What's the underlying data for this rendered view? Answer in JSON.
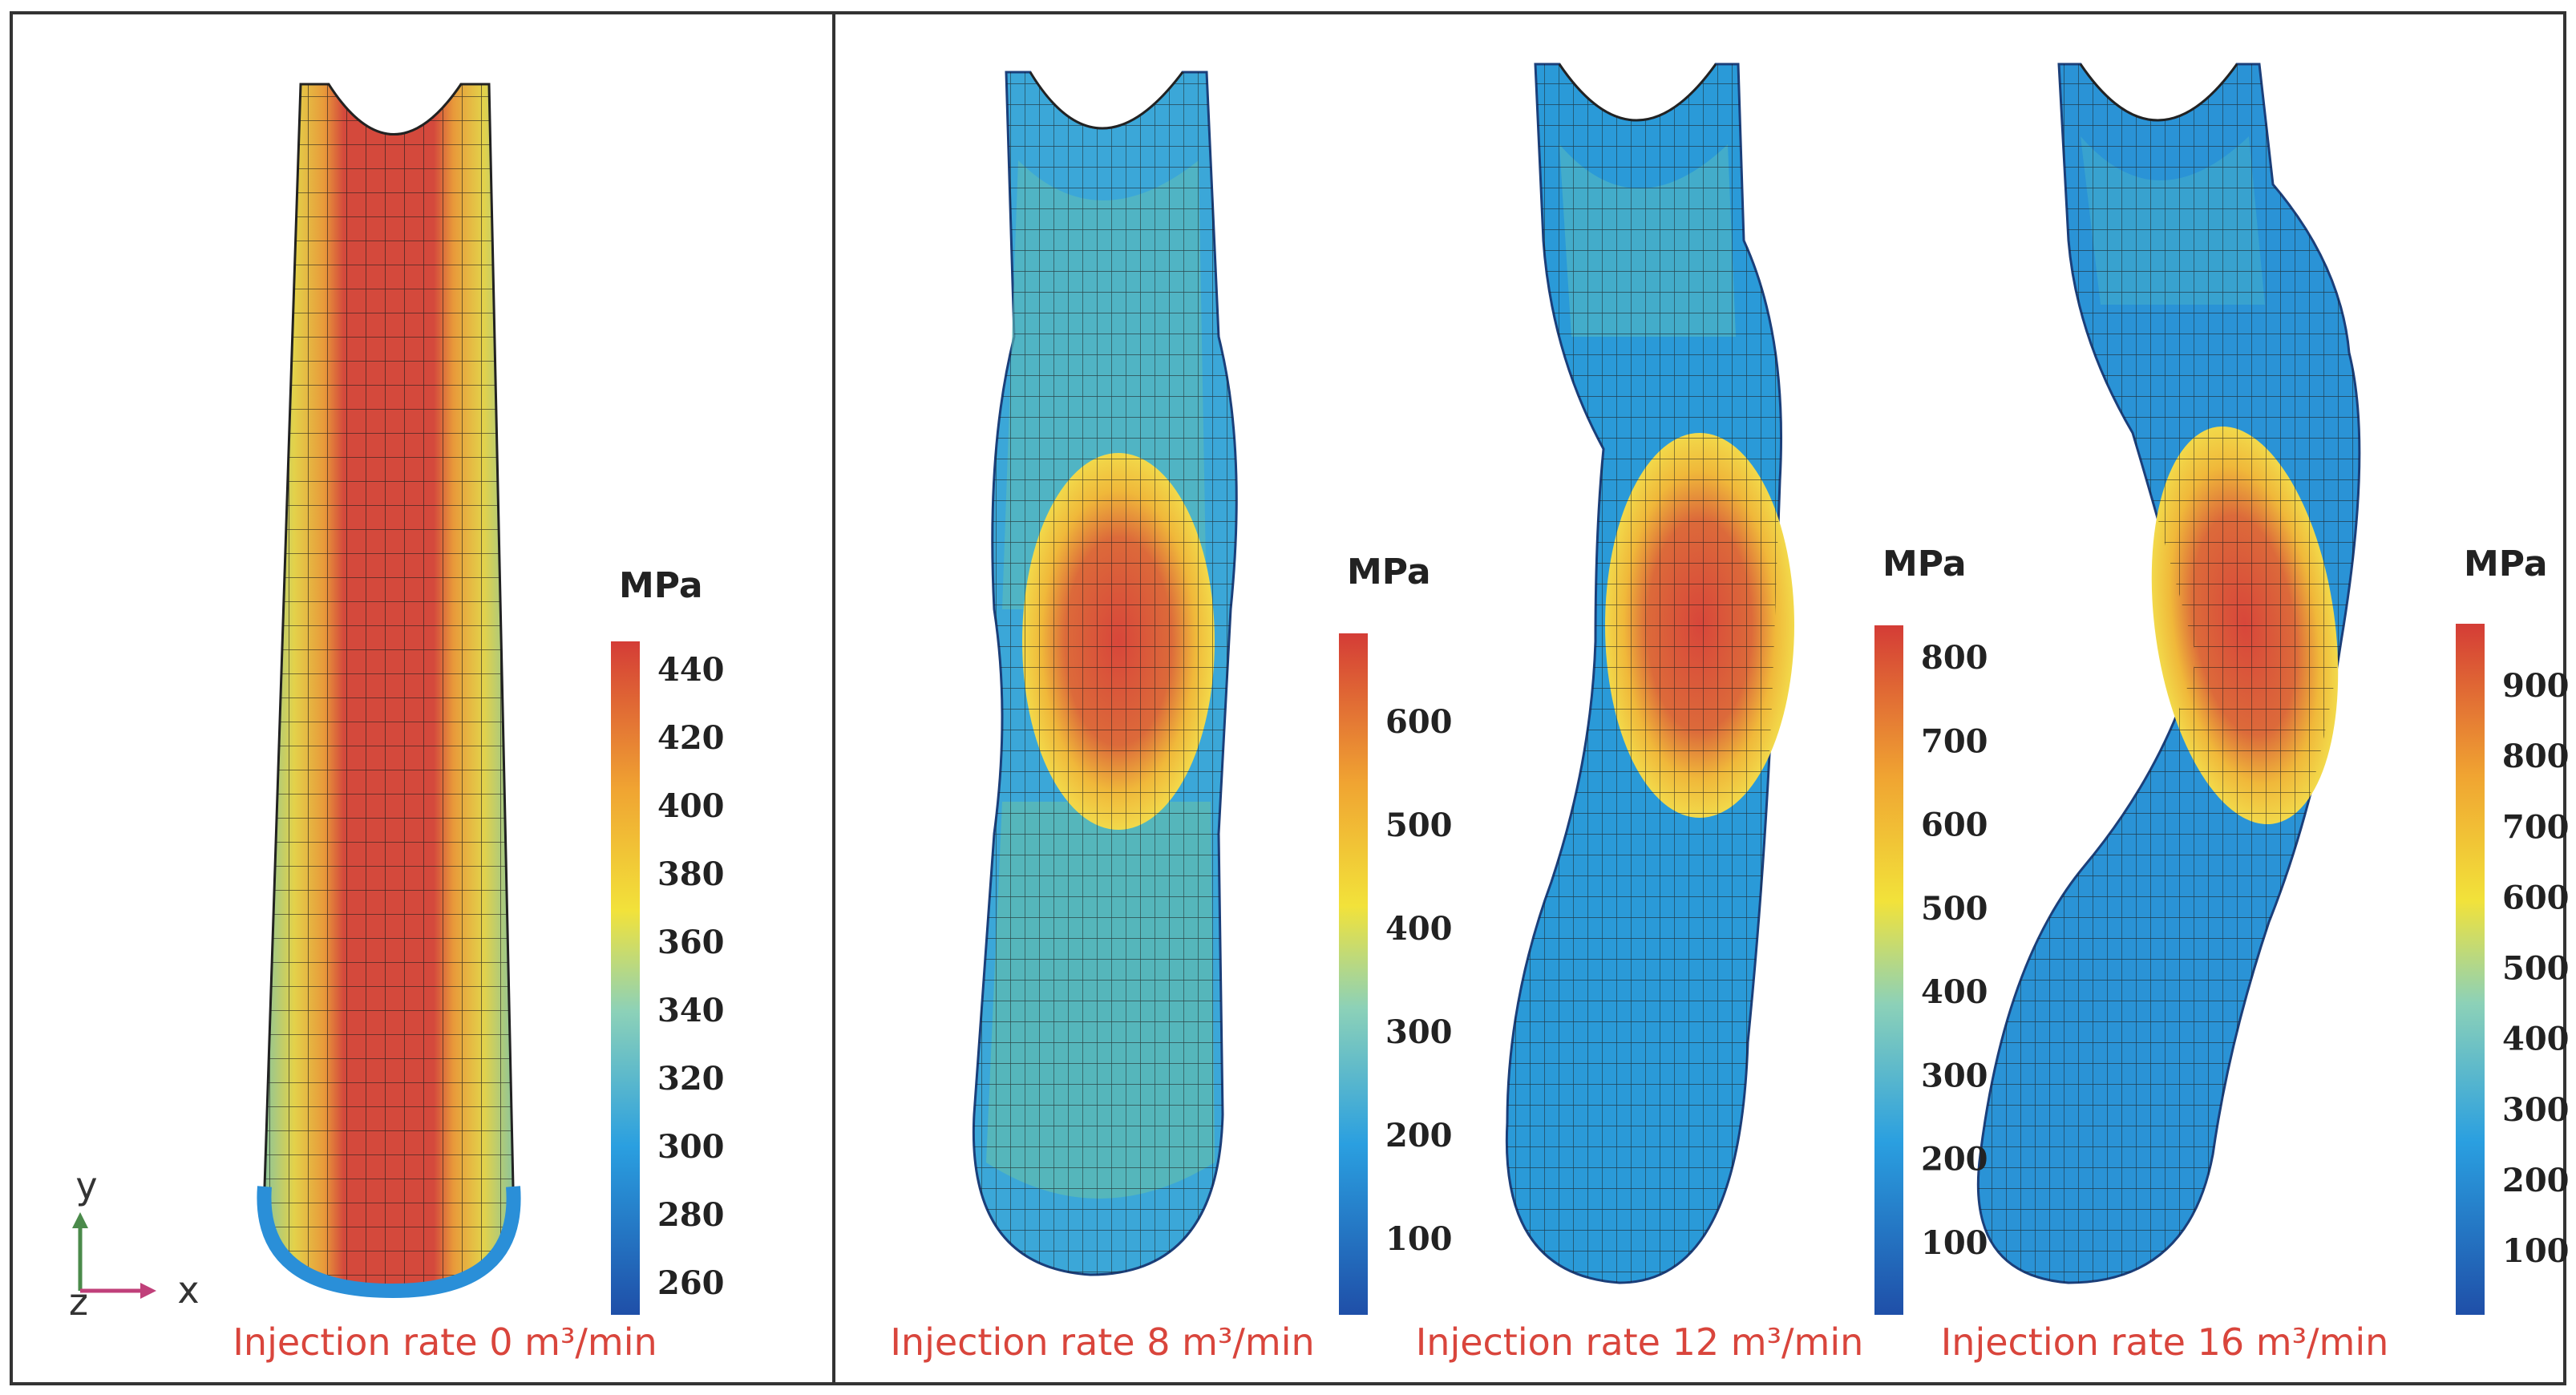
{
  "panels": [
    {
      "caption_prefix": "Injection rate ",
      "rate": "0",
      "caption_suffix": " m³/min",
      "colorbar": {
        "unit": "MPa",
        "ticks": [
          "440",
          "420",
          "400",
          "380",
          "360",
          "340",
          "320",
          "300",
          "280",
          "260"
        ]
      }
    },
    {
      "caption_prefix": "Injection rate ",
      "rate": "8",
      "caption_suffix": " m³/min",
      "colorbar": {
        "unit": "MPa",
        "ticks": [
          "600",
          "500",
          "400",
          "300",
          "200",
          "100"
        ]
      }
    },
    {
      "caption_prefix": "Injection rate ",
      "rate": "12",
      "caption_suffix": " m³/min",
      "colorbar": {
        "unit": "MPa",
        "ticks": [
          "800",
          "700",
          "600",
          "500",
          "400",
          "300",
          "200",
          "100"
        ]
      }
    },
    {
      "caption_prefix": "Injection rate ",
      "rate": "16",
      "caption_suffix": " m³/min",
      "colorbar": {
        "unit": "MPa",
        "ticks": [
          "900",
          "800",
          "700",
          "600",
          "500",
          "400",
          "300",
          "200",
          "100"
        ]
      }
    }
  ],
  "axes": {
    "y": "y",
    "x": "x",
    "z": "z"
  },
  "colors": {
    "high": "#d9453c",
    "mid_high": "#f2d330",
    "mid": "#7cc6b0",
    "low": "#2a8fd8",
    "min": "#1f4fa8",
    "frame": "#333333",
    "caption": "#d9453c"
  }
}
